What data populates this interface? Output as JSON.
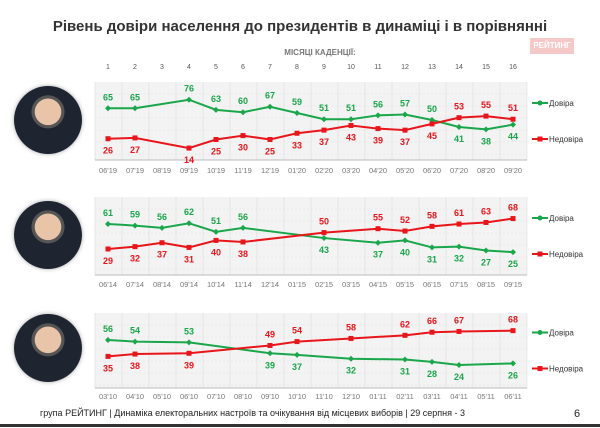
{
  "title": "Рівень довіри населення до президентів в динаміці і в порівнянні",
  "logo": "РЕЙТИНГ",
  "subtitle": "МІСЯЦІ КАДЕНЦІЇ:",
  "month_numbers": [
    "1",
    "2",
    "3",
    "4",
    "5",
    "6",
    "7",
    "8",
    "9",
    "10",
    "11",
    "12",
    "13",
    "14",
    "15",
    "16"
  ],
  "colors": {
    "trust": "#1aa64a",
    "distrust": "#e8151b"
  },
  "footer": "група РЕЙТИНГ | Динаміка електоральних настроїв та очікування від місцевих виборів | 29 серпня - 3",
  "page_number": "6",
  "chart_data": [
    {
      "type": "line",
      "categories": [
        "06'19",
        "07'19",
        "08'19",
        "09'19",
        "10'19",
        "11'19",
        "12'19",
        "01'20",
        "02'20",
        "03'20",
        "04'20",
        "05'20",
        "06'20",
        "07'20",
        "08'20",
        "09'20"
      ],
      "series": [
        {
          "name": "Довіра",
          "values": [
            65,
            65,
            null,
            76,
            63,
            60,
            67,
            59,
            51,
            51,
            56,
            57,
            50,
            41,
            38,
            44
          ]
        },
        {
          "name": "Недовіра",
          "values": [
            26,
            27,
            null,
            14,
            25,
            30,
            25,
            33,
            37,
            43,
            39,
            37,
            45,
            53,
            55,
            51
          ]
        }
      ],
      "legend": "right",
      "grid": true
    },
    {
      "type": "line",
      "categories": [
        "06'14",
        "07'14",
        "08'14",
        "09'14",
        "10'14",
        "11'14",
        "12'14",
        "01'15",
        "02'15",
        "03'15",
        "04'15",
        "05'15",
        "06'15",
        "07'15",
        "08'15",
        "09'15"
      ],
      "series": [
        {
          "name": "Довіра",
          "values": [
            61,
            59,
            56,
            62,
            51,
            56,
            null,
            null,
            43,
            null,
            37,
            40,
            31,
            32,
            27,
            25
          ]
        },
        {
          "name": "Недовіра",
          "values": [
            29,
            32,
            37,
            31,
            40,
            38,
            null,
            null,
            50,
            null,
            55,
            52,
            58,
            61,
            63,
            68
          ]
        }
      ],
      "legend": "right",
      "grid": true
    },
    {
      "type": "line",
      "categories": [
        "03'10",
        "04'10",
        "05'10",
        "06'10",
        "07'10",
        "08'10",
        "09'10",
        "10'10",
        "11'10",
        "12'10",
        "01'11",
        "02'11",
        "03'11",
        "04'11",
        "05'11",
        "06'11"
      ],
      "series": [
        {
          "name": "Довіра",
          "values": [
            56,
            54,
            null,
            53,
            null,
            null,
            39,
            37,
            null,
            32,
            null,
            31,
            28,
            24,
            null,
            26
          ]
        },
        {
          "name": "Недовіра",
          "values": [
            35,
            38,
            null,
            39,
            null,
            null,
            49,
            54,
            null,
            58,
            null,
            62,
            66,
            67,
            null,
            68
          ]
        }
      ],
      "legend": "right",
      "grid": true
    }
  ]
}
